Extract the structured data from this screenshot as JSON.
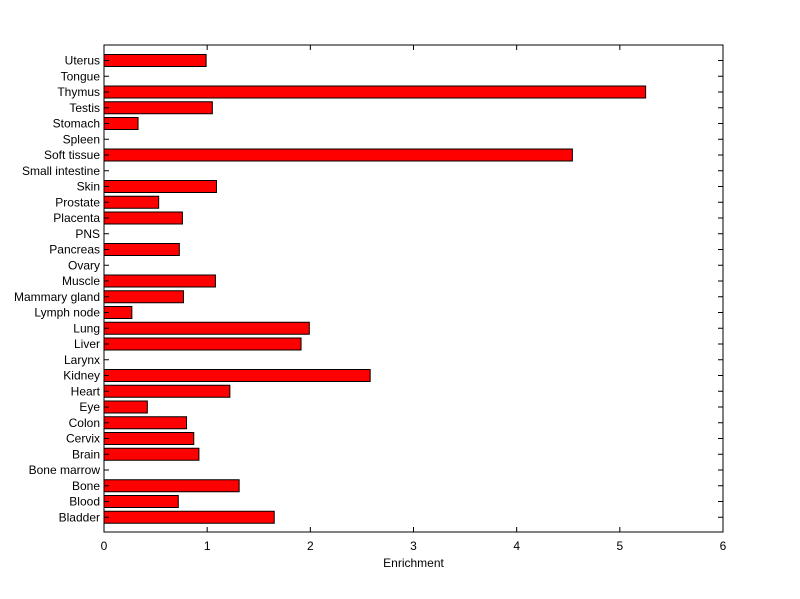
{
  "chart_data": {
    "type": "bar",
    "orientation": "horizontal",
    "title": "",
    "xlabel": "Enrichment",
    "ylabel": "",
    "xlim": [
      0,
      6
    ],
    "xticks": [
      0,
      1,
      2,
      3,
      4,
      5,
      6
    ],
    "grid": false,
    "bar_color": "#ff0000",
    "categories": [
      "Uterus",
      "Tongue",
      "Thymus",
      "Testis",
      "Stomach",
      "Spleen",
      "Soft tissue",
      "Small intestine",
      "Skin",
      "Prostate",
      "Placenta",
      "PNS",
      "Pancreas",
      "Ovary",
      "Muscle",
      "Mammary gland",
      "Lymph node",
      "Lung",
      "Liver",
      "Larynx",
      "Kidney",
      "Heart",
      "Eye",
      "Colon",
      "Cervix",
      "Brain",
      "Bone marrow",
      "Bone",
      "Blood",
      "Bladder"
    ],
    "values": [
      0.99,
      0,
      5.25,
      1.05,
      0.33,
      0,
      4.54,
      0,
      1.09,
      0.53,
      0.76,
      0,
      0.73,
      0,
      1.08,
      0.77,
      0.27,
      1.99,
      1.91,
      0,
      2.58,
      1.22,
      0.42,
      0.8,
      0.87,
      0.92,
      0,
      1.31,
      0.72,
      1.65
    ]
  }
}
